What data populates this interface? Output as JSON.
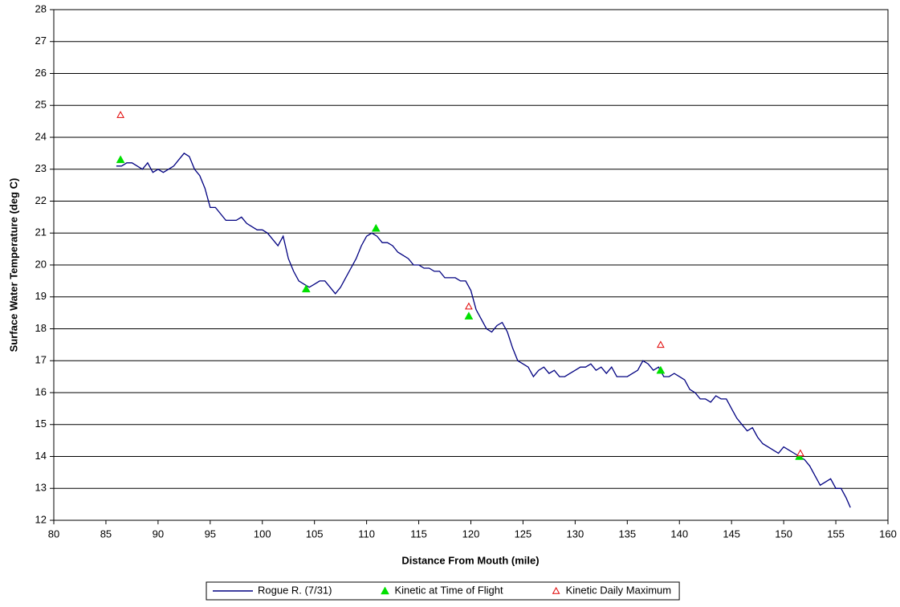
{
  "chart_data": {
    "type": "line",
    "xlabel": "Distance From Mouth (mile)",
    "ylabel": "Surface Water Temperature (deg C)",
    "xlim": [
      80,
      160
    ],
    "xticks": [
      80,
      85,
      90,
      95,
      100,
      105,
      110,
      115,
      120,
      125,
      130,
      135,
      140,
      145,
      150,
      155,
      160
    ],
    "ylim": [
      12,
      28
    ],
    "yticks": [
      12,
      13,
      14,
      15,
      16,
      17,
      18,
      19,
      20,
      21,
      22,
      23,
      24,
      25,
      26,
      27,
      28
    ],
    "grid": true,
    "legend": "bottom",
    "series": [
      {
        "name": "Rogue R. (7/31)",
        "type": "line",
        "color": "#000080",
        "x": [
          86,
          86.5,
          87,
          87.5,
          88,
          88.5,
          89,
          89.5,
          90,
          90.5,
          91,
          91.5,
          92,
          92.5,
          93,
          93.5,
          94,
          94.5,
          95,
          95.5,
          96,
          96.5,
          97,
          97.5,
          98,
          98.5,
          99,
          99.5,
          100,
          100.5,
          101,
          101.5,
          102,
          102.5,
          103,
          103.5,
          104,
          104.5,
          105,
          105.5,
          106,
          106.5,
          107,
          107.5,
          108,
          108.5,
          109,
          109.5,
          110,
          110.5,
          111,
          111.5,
          112,
          112.5,
          113,
          113.5,
          114,
          114.5,
          115,
          115.5,
          116,
          116.5,
          117,
          117.5,
          118,
          118.5,
          119,
          119.5,
          120,
          120.5,
          121,
          121.5,
          122,
          122.5,
          123,
          123.5,
          124,
          124.5,
          125,
          125.5,
          126,
          126.5,
          127,
          127.5,
          128,
          128.5,
          129,
          129.5,
          130,
          130.5,
          131,
          131.5,
          132,
          132.5,
          133,
          133.5,
          134,
          134.5,
          135,
          135.5,
          136,
          136.5,
          137,
          137.5,
          138,
          138.5,
          139,
          139.5,
          140,
          140.5,
          141,
          141.5,
          142,
          142.5,
          143,
          143.5,
          144,
          144.5,
          145,
          145.5,
          146,
          146.5,
          147,
          147.5,
          148,
          148.5,
          149,
          149.5,
          150,
          150.5,
          151,
          151.5,
          152,
          152.5,
          153,
          153.5,
          154,
          154.5,
          155,
          155.5,
          156,
          156.4
        ],
        "values": [
          23.1,
          23.1,
          23.2,
          23.2,
          23.1,
          23.0,
          23.2,
          22.9,
          23.0,
          22.9,
          23.0,
          23.1,
          23.3,
          23.5,
          23.4,
          23.0,
          22.8,
          22.4,
          21.8,
          21.8,
          21.6,
          21.4,
          21.4,
          21.4,
          21.5,
          21.3,
          21.2,
          21.1,
          21.1,
          21.0,
          20.8,
          20.6,
          20.9,
          20.2,
          19.8,
          19.5,
          19.4,
          19.3,
          19.4,
          19.5,
          19.5,
          19.3,
          19.1,
          19.3,
          19.6,
          19.9,
          20.2,
          20.6,
          20.9,
          21.0,
          20.9,
          20.7,
          20.7,
          20.6,
          20.4,
          20.3,
          20.2,
          20.0,
          20.0,
          19.9,
          19.9,
          19.8,
          19.8,
          19.6,
          19.6,
          19.6,
          19.5,
          19.5,
          19.2,
          18.6,
          18.3,
          18.0,
          17.9,
          18.1,
          18.2,
          17.9,
          17.4,
          17.0,
          16.9,
          16.8,
          16.5,
          16.7,
          16.8,
          16.6,
          16.7,
          16.5,
          16.5,
          16.6,
          16.7,
          16.8,
          16.8,
          16.9,
          16.7,
          16.8,
          16.6,
          16.8,
          16.5,
          16.5,
          16.5,
          16.6,
          16.7,
          17.0,
          16.9,
          16.7,
          16.8,
          16.5,
          16.5,
          16.6,
          16.5,
          16.4,
          16.1,
          16.0,
          15.8,
          15.8,
          15.7,
          15.9,
          15.8,
          15.8,
          15.5,
          15.2,
          15.0,
          14.8,
          14.9,
          14.6,
          14.4,
          14.3,
          14.2,
          14.1,
          14.3,
          14.2,
          14.1,
          14.0,
          13.9,
          13.7,
          13.4,
          13.1,
          13.2,
          13.3,
          13.0,
          13.0,
          12.7,
          12.4
        ]
      },
      {
        "name": "Kinetic at Time of Flight",
        "type": "scatter",
        "marker": "filled-triangle",
        "color": "#00e000",
        "x": [
          86.4,
          104.2,
          110.9,
          119.8,
          138.2,
          151.5
        ],
        "values": [
          23.3,
          19.25,
          21.15,
          18.4,
          16.7,
          14.0
        ]
      },
      {
        "name": "Kinetic Daily Maximum",
        "type": "scatter",
        "marker": "open-triangle",
        "color": "#e00000",
        "x": [
          86.4,
          119.8,
          138.2,
          151.6
        ],
        "values": [
          24.7,
          18.7,
          17.5,
          14.1
        ]
      }
    ]
  }
}
